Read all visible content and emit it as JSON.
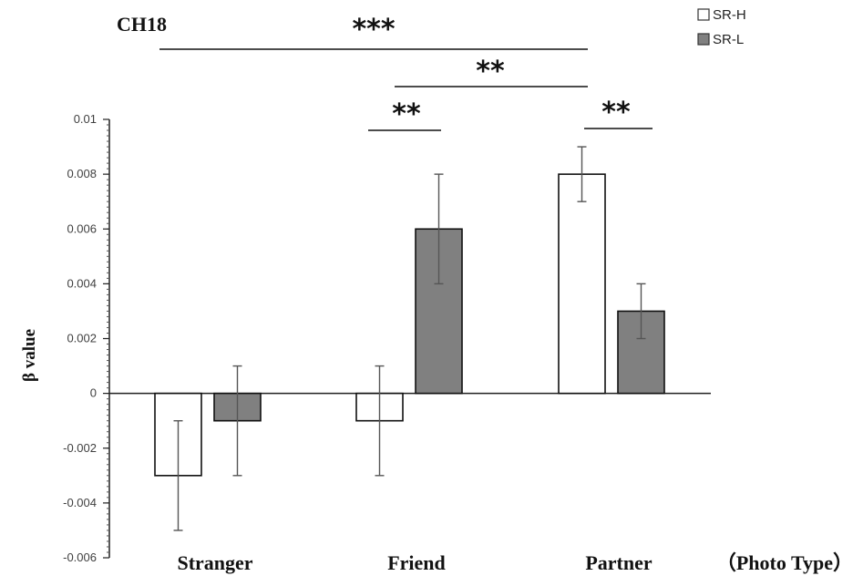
{
  "chart_data": {
    "type": "bar",
    "title": "CH18",
    "ylabel": "β value",
    "xlabel": "（Photo Type）",
    "ylim": [
      -0.006,
      0.01
    ],
    "yticks": [
      -0.006,
      -0.004,
      -0.002,
      0,
      0.002,
      0.004,
      0.006,
      0.008,
      0.01
    ],
    "ytick_labels": [
      "-0.006",
      "-0.004",
      "-0.002",
      "0",
      "0.002",
      "0.004",
      "0.006",
      "0.008",
      "0.01"
    ],
    "categories": [
      "Stranger",
      "Friend",
      "Partner"
    ],
    "series": [
      {
        "name": "SR-H",
        "values": [
          -0.003,
          -0.001,
          0.008
        ],
        "errors": [
          0.002,
          0.002,
          0.001
        ],
        "color": "#ffffff"
      },
      {
        "name": "SR-L",
        "values": [
          -0.001,
          0.006,
          0.003
        ],
        "errors": [
          0.002,
          0.002,
          0.001
        ],
        "color": "#808080"
      }
    ],
    "legend_position": "top-right",
    "significance": [
      {
        "label": "***",
        "from": "Stranger",
        "to": "Partner"
      },
      {
        "label": "**",
        "from": "Friend",
        "to": "Partner"
      },
      {
        "label": "**",
        "from": "Friend SR-H",
        "to": "Friend SR-L"
      },
      {
        "label": "**",
        "from": "Partner SR-H",
        "to": "Partner SR-L"
      }
    ]
  }
}
